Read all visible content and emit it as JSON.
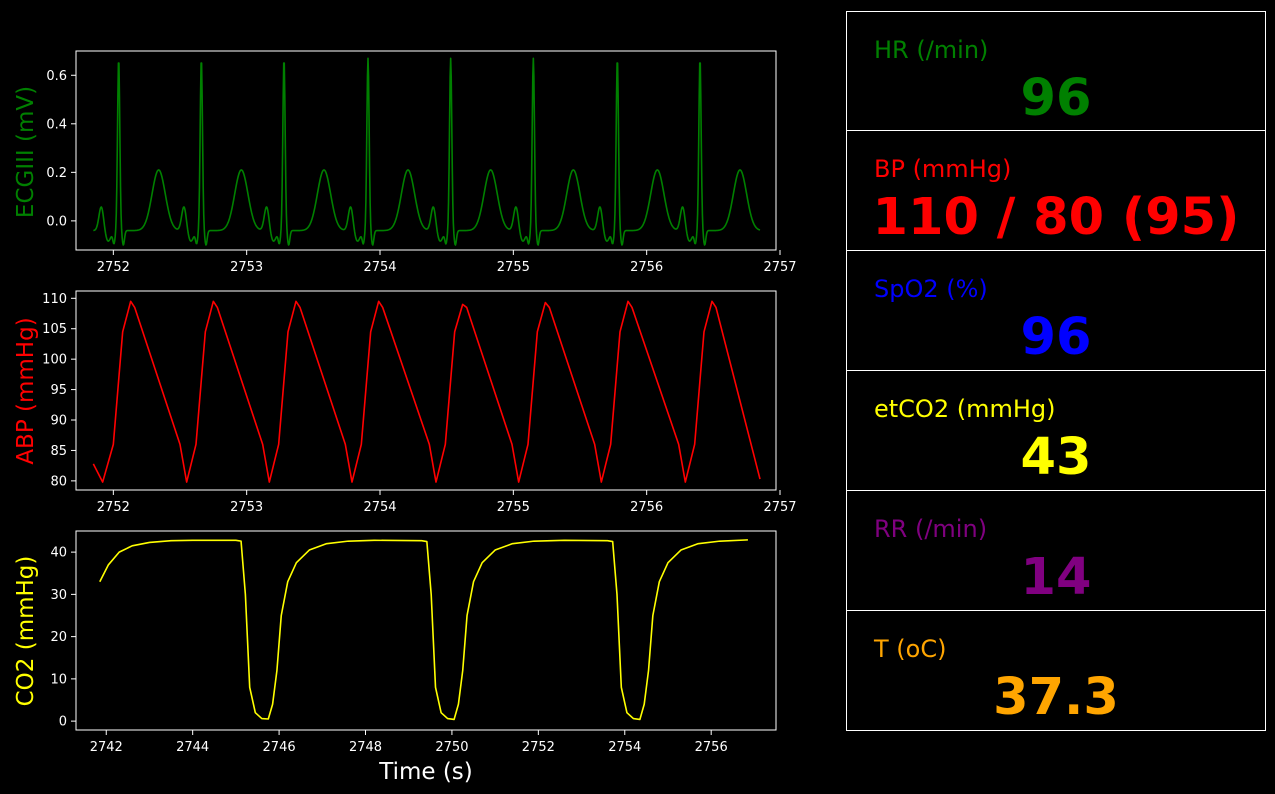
{
  "colors": {
    "background": "#000000",
    "frame": "#ffffff",
    "ecg": "#008000",
    "abp": "#ff0000",
    "co2": "#ffff00",
    "hr": "#008000",
    "bp": "#ff0000",
    "spo2": "#0000ff",
    "etco2": "#ffff00",
    "rr": "#800080",
    "temp": "#ffa500"
  },
  "vitals": [
    {
      "key": "hr",
      "label": "HR (/min)",
      "value": "96",
      "color": "#008000"
    },
    {
      "key": "bp",
      "label": "BP  (mmHg)",
      "value": "110 / 80 (95)",
      "color": "#ff0000"
    },
    {
      "key": "spo2",
      "label": "SpO2 (%)",
      "value": "96",
      "color": "#0000ff"
    },
    {
      "key": "etco2",
      "label": "etCO2 (mmHg)",
      "value": "43",
      "color": "#ffff00"
    },
    {
      "key": "rr",
      "label": "RR (/min)",
      "value": "14",
      "color": "#800080"
    },
    {
      "key": "temp",
      "label": "T (oC)",
      "value": "37.3",
      "color": "#ffa500"
    }
  ],
  "chart_data": [
    {
      "type": "line",
      "name": "ecg",
      "ylabel": "ECGIII (mV)",
      "xlabel": "",
      "xlim": [
        2751.72,
        2756.97
      ],
      "ylim": [
        -0.12,
        0.7
      ],
      "xticks": [
        2752,
        2753,
        2754,
        2755,
        2756,
        2757
      ],
      "yticks": [
        0.0,
        0.2,
        0.4,
        0.6
      ],
      "ytick_labels": [
        "0.0",
        "0.2",
        "0.4",
        "0.6"
      ],
      "grid": false,
      "beat_times": [
        2752.04,
        2752.66,
        2753.28,
        2753.91,
        2754.53,
        2755.15,
        2755.78,
        2756.4
      ],
      "series": [
        {
          "color": "#008000",
          "x_start": 2751.85,
          "x_end": 2756.85
        }
      ]
    },
    {
      "type": "line",
      "name": "abp",
      "ylabel": "ABP (mmHg)",
      "xlabel": "",
      "xlim": [
        2751.72,
        2756.97
      ],
      "ylim": [
        78.5,
        111.2
      ],
      "xticks": [
        2752,
        2753,
        2754,
        2755,
        2756,
        2757
      ],
      "yticks": [
        80,
        85,
        90,
        95,
        100,
        105,
        110
      ],
      "grid": false,
      "series": [
        {
          "color": "#ff0000",
          "points": [
            [
              2751.85,
              82.8
            ],
            [
              2751.92,
              79.8
            ],
            [
              2752.0,
              86
            ],
            [
              2752.07,
              104.5
            ],
            [
              2752.13,
              109.5
            ],
            [
              2752.16,
              108.5
            ],
            [
              2752.5,
              86
            ],
            [
              2752.55,
              79.8
            ],
            [
              2752.62,
              86
            ],
            [
              2752.69,
              104.5
            ],
            [
              2752.75,
              109.5
            ],
            [
              2752.78,
              108.5
            ],
            [
              2753.12,
              86
            ],
            [
              2753.17,
              79.8
            ],
            [
              2753.24,
              86
            ],
            [
              2753.31,
              104.5
            ],
            [
              2753.37,
              109.5
            ],
            [
              2753.4,
              108.5
            ],
            [
              2753.74,
              86
            ],
            [
              2753.79,
              79.8
            ],
            [
              2753.86,
              86
            ],
            [
              2753.93,
              104.5
            ],
            [
              2753.99,
              109.5
            ],
            [
              2754.02,
              108.5
            ],
            [
              2754.37,
              86
            ],
            [
              2754.42,
              79.8
            ],
            [
              2754.49,
              86
            ],
            [
              2754.56,
              104.5
            ],
            [
              2754.62,
              109.0
            ],
            [
              2754.65,
              108.5
            ],
            [
              2754.99,
              86
            ],
            [
              2755.04,
              79.8
            ],
            [
              2755.11,
              86
            ],
            [
              2755.18,
              104.5
            ],
            [
              2755.24,
              109.3
            ],
            [
              2755.27,
              108.5
            ],
            [
              2755.61,
              86
            ],
            [
              2755.66,
              79.8
            ],
            [
              2755.73,
              86
            ],
            [
              2755.8,
              104.5
            ],
            [
              2755.86,
              109.5
            ],
            [
              2755.89,
              108.5
            ],
            [
              2756.24,
              86
            ],
            [
              2756.29,
              79.8
            ],
            [
              2756.36,
              86
            ],
            [
              2756.43,
              104.5
            ],
            [
              2756.49,
              109.5
            ],
            [
              2756.52,
              108.5
            ],
            [
              2756.85,
              80.3
            ]
          ]
        }
      ]
    },
    {
      "type": "line",
      "name": "co2",
      "ylabel": "CO2 (mmHg)",
      "xlabel": "Time (s)",
      "xlim": [
        2741.3,
        2757.5
      ],
      "ylim": [
        -2.1,
        45.0
      ],
      "xticks": [
        2742,
        2744,
        2746,
        2748,
        2750,
        2752,
        2754,
        2756
      ],
      "yticks": [
        0,
        10,
        20,
        30,
        40
      ],
      "grid": false,
      "series": [
        {
          "color": "#ffff00",
          "points": [
            [
              2741.85,
              33
            ],
            [
              2742.05,
              37
            ],
            [
              2742.3,
              40
            ],
            [
              2742.6,
              41.5
            ],
            [
              2743.0,
              42.3
            ],
            [
              2743.5,
              42.7
            ],
            [
              2744.0,
              42.8
            ],
            [
              2745.0,
              42.8
            ],
            [
              2745.12,
              42.6
            ],
            [
              2745.22,
              30
            ],
            [
              2745.32,
              8
            ],
            [
              2745.45,
              2
            ],
            [
              2745.6,
              0.6
            ],
            [
              2745.75,
              0.5
            ],
            [
              2745.85,
              4
            ],
            [
              2745.95,
              12
            ],
            [
              2746.05,
              25
            ],
            [
              2746.2,
              33
            ],
            [
              2746.4,
              37.5
            ],
            [
              2746.7,
              40.5
            ],
            [
              2747.1,
              42
            ],
            [
              2747.6,
              42.6
            ],
            [
              2748.2,
              42.8
            ],
            [
              2749.3,
              42.7
            ],
            [
              2749.42,
              42.5
            ],
            [
              2749.52,
              30
            ],
            [
              2749.62,
              8
            ],
            [
              2749.75,
              2
            ],
            [
              2749.9,
              0.6
            ],
            [
              2750.05,
              0.4
            ],
            [
              2750.15,
              4
            ],
            [
              2750.25,
              12
            ],
            [
              2750.35,
              25
            ],
            [
              2750.5,
              33
            ],
            [
              2750.7,
              37.5
            ],
            [
              2751.0,
              40.5
            ],
            [
              2751.4,
              42
            ],
            [
              2751.9,
              42.6
            ],
            [
              2752.6,
              42.8
            ],
            [
              2753.6,
              42.7
            ],
            [
              2753.72,
              42.5
            ],
            [
              2753.82,
              30
            ],
            [
              2753.92,
              8
            ],
            [
              2754.05,
              2
            ],
            [
              2754.2,
              0.6
            ],
            [
              2754.35,
              0.4
            ],
            [
              2754.45,
              4
            ],
            [
              2754.55,
              12
            ],
            [
              2754.65,
              25
            ],
            [
              2754.8,
              33
            ],
            [
              2755.0,
              37.5
            ],
            [
              2755.3,
              40.5
            ],
            [
              2755.7,
              42
            ],
            [
              2756.2,
              42.6
            ],
            [
              2756.85,
              42.9
            ]
          ]
        }
      ]
    }
  ]
}
